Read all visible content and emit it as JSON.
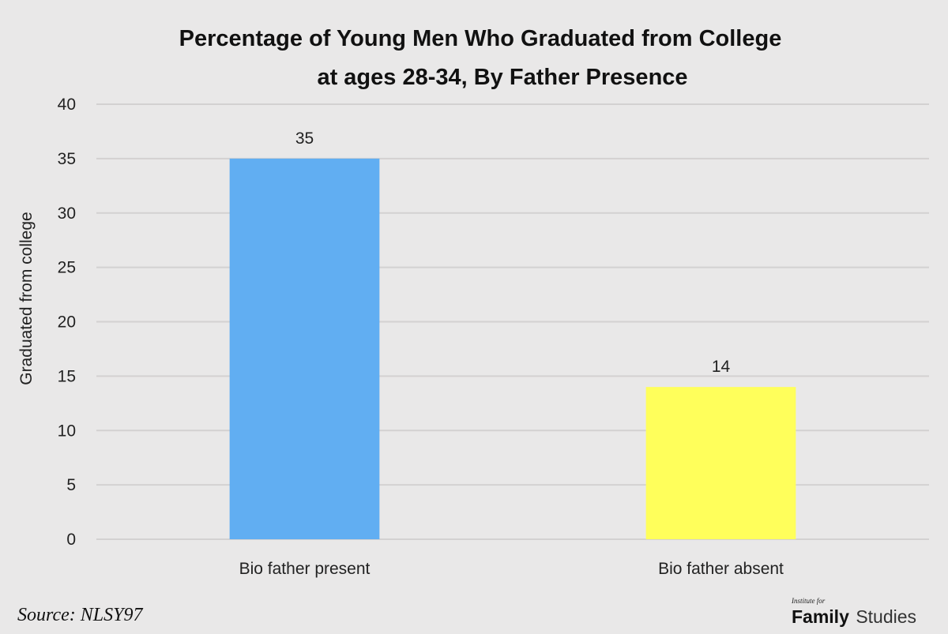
{
  "chart_data": {
    "type": "bar",
    "title_lines": [
      "Percentage of Young Men Who Graduated from College",
      "at ages 28-34, By Father Presence"
    ],
    "ylabel": "Graduated from college",
    "xlabel": "",
    "categories": [
      "Bio father present",
      "Bio father absent"
    ],
    "values": [
      35,
      14
    ],
    "data_labels": [
      "35",
      "14"
    ],
    "colors": [
      "#61aef2",
      "#ffff5b"
    ],
    "ylim": [
      0,
      40
    ],
    "yticks": [
      0,
      5,
      10,
      15,
      20,
      25,
      30,
      35,
      40
    ],
    "grid": true,
    "legend": "none"
  },
  "footer": {
    "source": "Source: NLSY97",
    "logo": {
      "small": "Institute for",
      "bold": "Family",
      "light": "Studies"
    }
  },
  "colors": {
    "background": "#e9e8e8",
    "gridline": "#d3d1d1"
  }
}
